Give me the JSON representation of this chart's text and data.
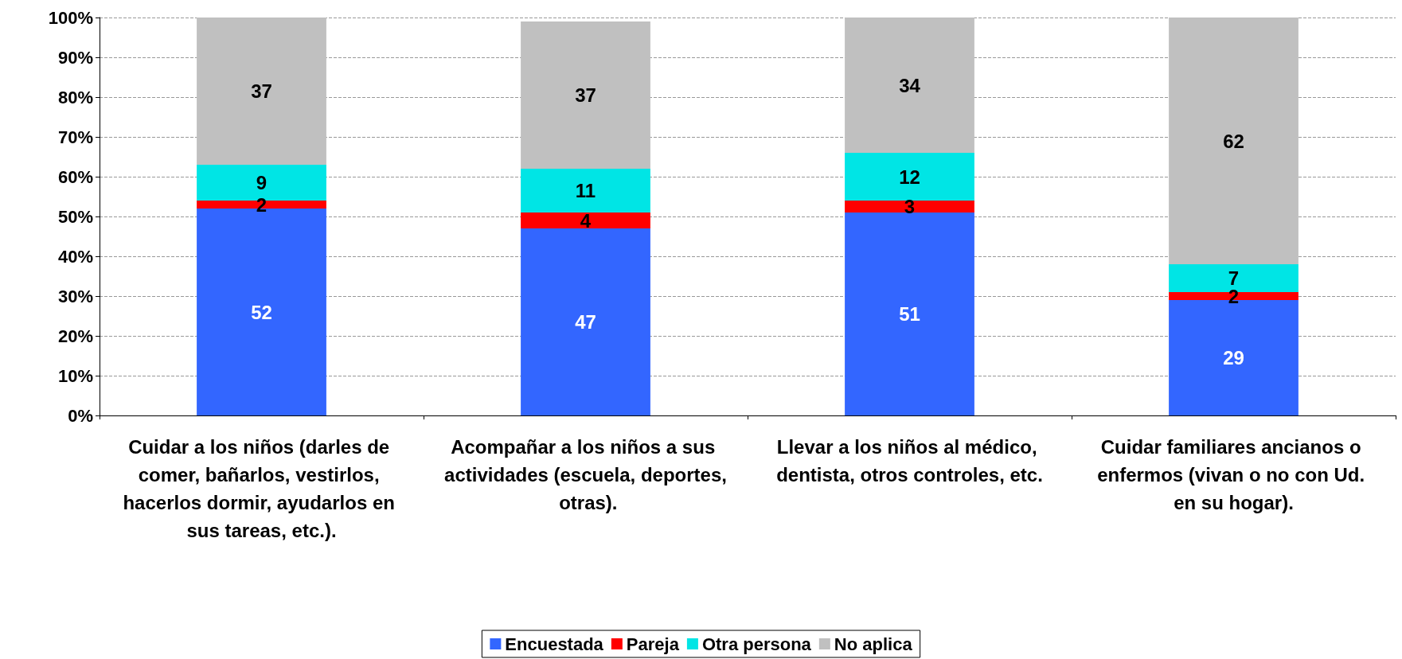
{
  "chart_data": {
    "type": "bar",
    "stacked": true,
    "categories": [
      "Cuidar a los niños (darles de comer, bañarlos, vestirlos, hacerlos dormir, ayudarlos en sus tareas, etc.).",
      "Acompañar a los niños a sus actividades (escuela, deportes, otras).",
      "Llevar a los niños al médico, dentista, otros controles, etc.",
      "Cuidar familiares ancianos o enfermos (vivan o no con Ud. en su hogar)."
    ],
    "series": [
      {
        "name": "Encuestada",
        "color": "#3366ff",
        "values": [
          52,
          47,
          51,
          29
        ]
      },
      {
        "name": "Pareja",
        "color": "#ff0000",
        "values": [
          2,
          4,
          3,
          2
        ]
      },
      {
        "name": "Otra persona",
        "color": "#00e5e5",
        "values": [
          9,
          11,
          12,
          7
        ]
      },
      {
        "name": "No aplica",
        "color": "#c0c0c0",
        "values": [
          37,
          37,
          34,
          62
        ]
      }
    ],
    "ylim": [
      0,
      100
    ],
    "yticks": [
      {
        "value": 0,
        "label": "0%"
      },
      {
        "value": 10,
        "label": "10%"
      },
      {
        "value": 20,
        "label": "20%"
      },
      {
        "value": 30,
        "label": "30%"
      },
      {
        "value": 40,
        "label": "40%"
      },
      {
        "value": 50,
        "label": "50%"
      },
      {
        "value": 60,
        "label": "60%"
      },
      {
        "value": 70,
        "label": "70%"
      },
      {
        "value": 80,
        "label": "80%"
      },
      {
        "value": 90,
        "label": "90%"
      },
      {
        "value": 100,
        "label": "100%"
      }
    ],
    "grid": "y",
    "legend": "bottom",
    "data_labels": true
  }
}
